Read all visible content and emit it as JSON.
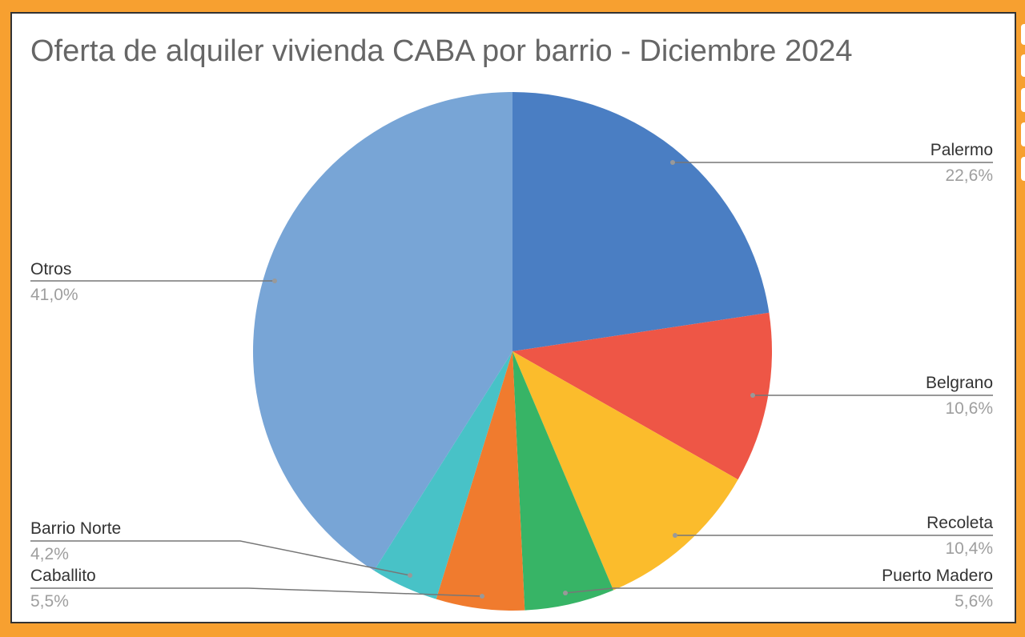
{
  "chart_data": {
    "type": "pie",
    "title": "Oferta de alquiler vivienda CABA por barrio - Diciembre 2024",
    "categories": [
      "Palermo",
      "Belgrano",
      "Recoleta",
      "Puerto Madero",
      "Caballito",
      "Barrio Norte",
      "Otros"
    ],
    "values": [
      22.6,
      10.6,
      10.4,
      5.6,
      5.5,
      4.2,
      41.0
    ],
    "value_labels": [
      "22,6%",
      "10,6%",
      "10,4%",
      "5,6%",
      "5,5%",
      "4,2%",
      "41,0%"
    ],
    "colors": [
      "#4a7ec3",
      "#ee5646",
      "#fbbc2c",
      "#37b466",
      "#f07b2e",
      "#48c2c7",
      "#78a5d6"
    ]
  }
}
